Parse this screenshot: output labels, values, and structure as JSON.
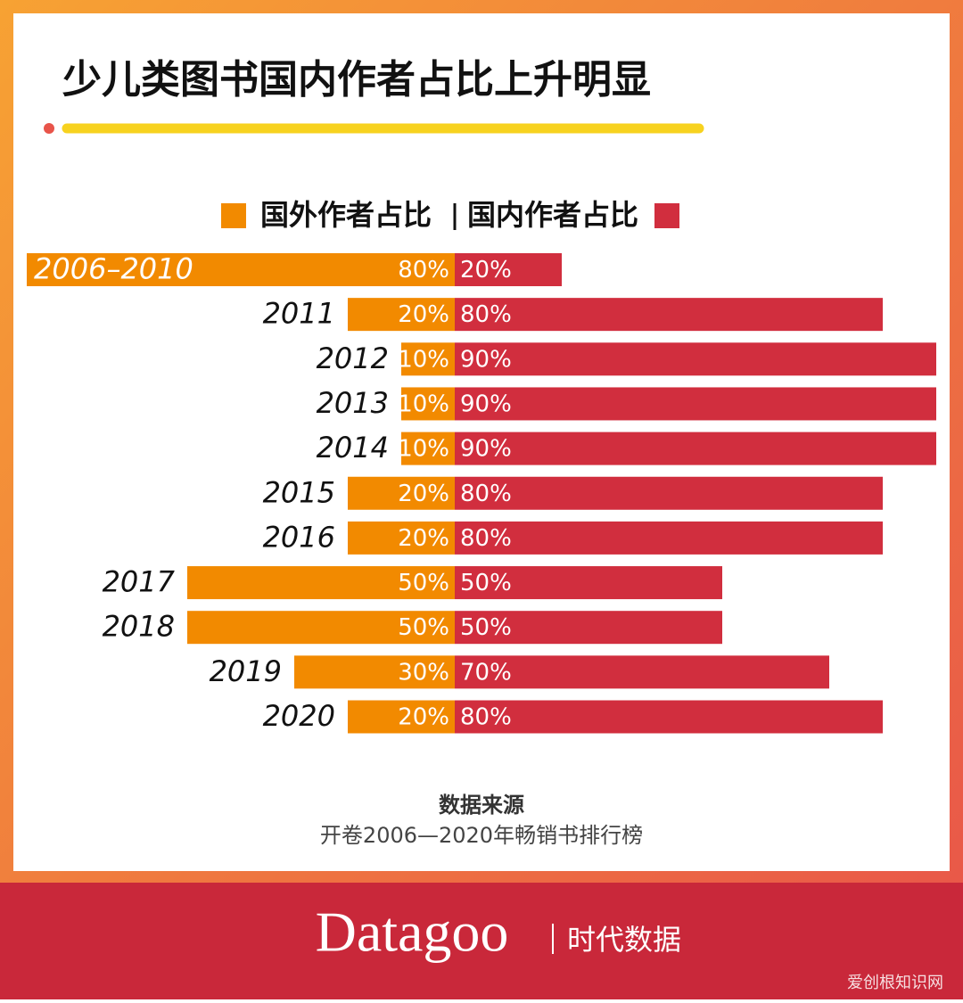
{
  "chart_data": {
    "type": "diverging-bar",
    "title": "少儿类图书国内作者占比上升明显",
    "categories": [
      "2006–2010",
      "2011",
      "2012",
      "2013",
      "2014",
      "2015",
      "2016",
      "2017",
      "2018",
      "2019",
      "2020"
    ],
    "series": [
      {
        "name": "国外作者占比",
        "color": "#f28a00",
        "values": [
          80,
          20,
          10,
          10,
          10,
          20,
          20,
          50,
          50,
          30,
          20
        ],
        "value_labels": [
          "80%",
          "20%",
          "10%",
          "10%",
          "10%",
          "20%",
          "20%",
          "50%",
          "50%",
          "30%",
          "20%"
        ]
      },
      {
        "name": "国内作者占比",
        "color": "#d12e3e",
        "values": [
          20,
          80,
          90,
          90,
          90,
          80,
          80,
          50,
          50,
          70,
          80
        ],
        "value_labels": [
          "20%",
          "80%",
          "90%",
          "90%",
          "90%",
          "80%",
          "80%",
          "50%",
          "50%",
          "70%",
          "80%"
        ]
      }
    ]
  },
  "source": {
    "heading": "数据来源",
    "text": "开卷2006—2020年畅销书排行榜"
  },
  "footer": {
    "brand": "Datagoo",
    "tagline": "时代数据"
  },
  "watermark": "爱创根知识网"
}
